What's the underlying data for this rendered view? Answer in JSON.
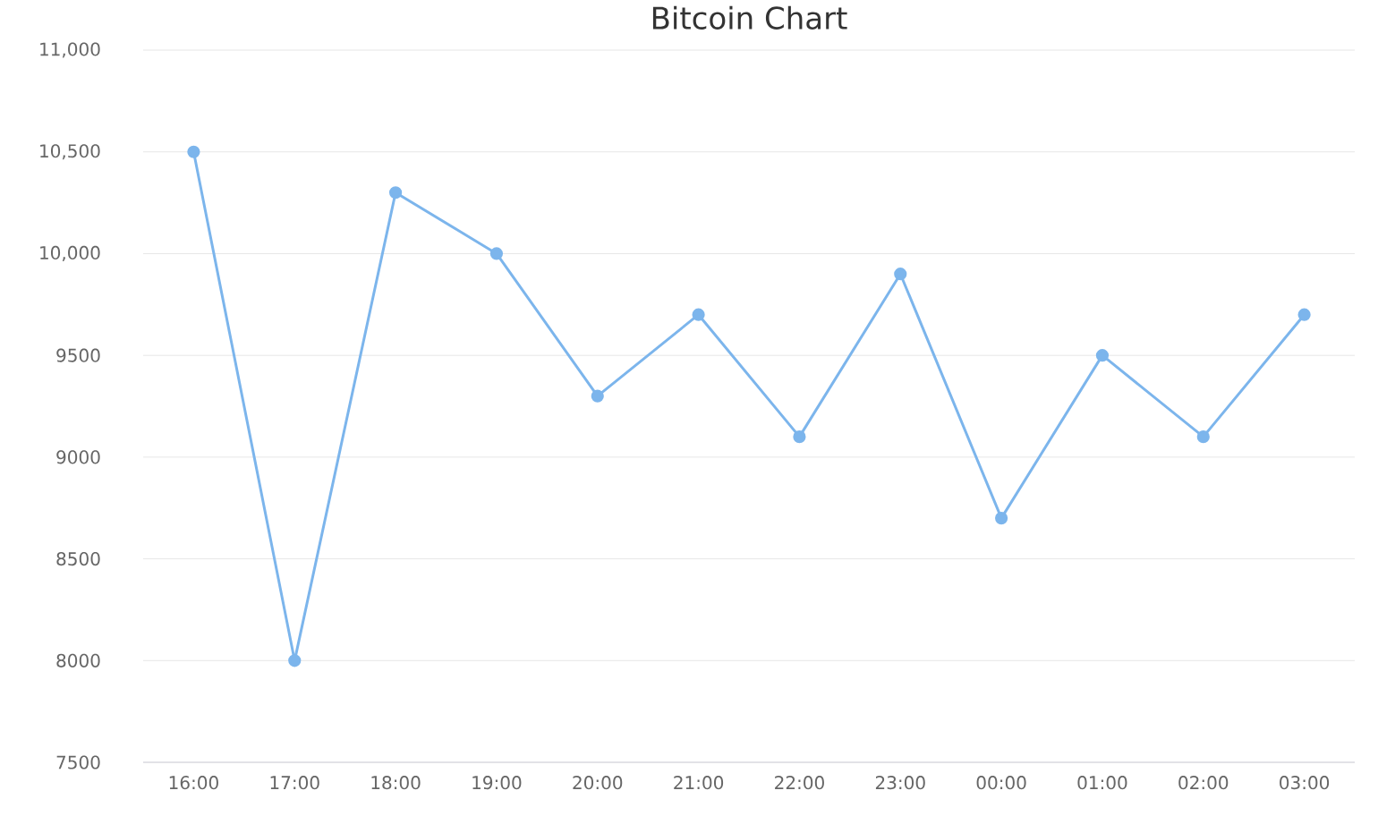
{
  "chart_data": {
    "type": "line",
    "title": "Bitcoin Chart",
    "categories": [
      "16:00",
      "17:00",
      "18:00",
      "19:00",
      "20:00",
      "21:00",
      "22:00",
      "23:00",
      "00:00",
      "01:00",
      "02:00",
      "03:00"
    ],
    "series": [
      {
        "color": "#7cb5ec",
        "values": [
          10500,
          8000,
          10300,
          10000,
          9300,
          9700,
          9100,
          9900,
          8700,
          9500,
          9100,
          9700
        ]
      }
    ],
    "ylim": [
      7500,
      11000
    ],
    "yticks": [
      7500,
      8000,
      8500,
      9000,
      9500,
      {
        "value": 10000,
        "label": "10,000"
      },
      {
        "value": 10500,
        "label": "10,500"
      },
      {
        "value": 11000,
        "label": "11,000"
      }
    ],
    "grid": "y",
    "marker": "circle",
    "line_style": "solid",
    "legend": false
  }
}
